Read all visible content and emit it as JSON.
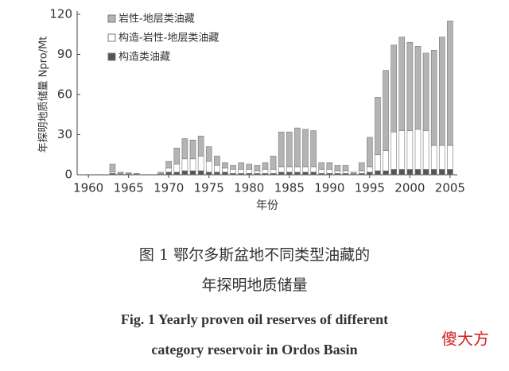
{
  "chart_data": {
    "type": "stacked-bar",
    "y_label": "年探明地质储量 Npro/Mt",
    "x_label": "年份",
    "caption_cn": [
      "图 1   鄂尔多斯盆地不同类型油藏的",
      "年探明地质储量"
    ],
    "caption_en": [
      "Fig. 1   Yearly proven oil reserves of different",
      "category reservoir in Ordos Basin"
    ],
    "watermark": "傻大方",
    "x": [
      1963,
      1964,
      1965,
      1966,
      1969,
      1970,
      1971,
      1972,
      1973,
      1974,
      1975,
      1976,
      1977,
      1978,
      1979,
      1980,
      1981,
      1982,
      1983,
      1984,
      1985,
      1986,
      1987,
      1988,
      1989,
      1990,
      1991,
      1992,
      1993,
      1994,
      1995,
      1996,
      1997,
      1998,
      1999,
      2000,
      2001,
      2002,
      2003,
      2004,
      2005
    ],
    "series": [
      {
        "name": "构造类油藏",
        "color": "#555555",
        "values": [
          1,
          0.5,
          0.5,
          0.5,
          0.5,
          2,
          2,
          3,
          3,
          3,
          2,
          2,
          2,
          1,
          1,
          1,
          1,
          1,
          1,
          2,
          2,
          2,
          2,
          2,
          1,
          1,
          1,
          1,
          0.5,
          1,
          2,
          3,
          3,
          4,
          4,
          4,
          4,
          4,
          4,
          4,
          4
        ]
      },
      {
        "name": "构造-岩性-地层类油藏",
        "color": "#ffffff",
        "values": [
          1,
          0.5,
          0.5,
          0,
          0.5,
          3,
          6,
          9,
          9,
          11,
          8,
          5,
          3,
          3,
          3,
          3,
          2,
          3,
          3,
          4,
          4,
          4,
          4,
          4,
          3,
          3,
          2,
          2,
          0.5,
          2,
          4,
          12,
          15,
          28,
          29,
          29,
          30,
          29,
          18,
          18,
          18
        ]
      },
      {
        "name": "岩性-地层类油藏",
        "color": "#b4b4b4",
        "values": [
          6,
          1,
          0.5,
          0.5,
          1,
          5,
          12,
          15,
          14,
          15,
          11,
          7,
          4,
          3,
          5,
          4,
          4,
          5,
          10,
          26,
          26,
          29,
          28,
          27,
          5,
          5,
          4,
          4,
          1,
          6,
          22,
          43,
          60,
          65,
          70,
          66,
          62,
          58,
          71,
          81,
          93
        ]
      }
    ],
    "xlim": [
      1958.6,
      2005.9
    ],
    "xticks": [
      1960,
      1965,
      1970,
      1975,
      1980,
      1985,
      1990,
      1995,
      2000,
      2005
    ],
    "ylim": [
      0,
      120
    ],
    "yticks": [
      0,
      30,
      60,
      90,
      120
    ],
    "legend": "top-left"
  }
}
